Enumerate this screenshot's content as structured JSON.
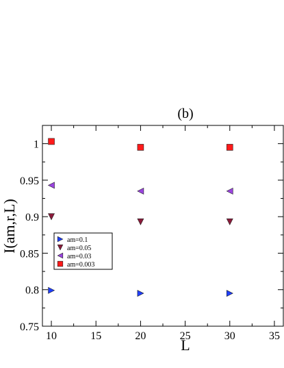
{
  "chart_data": {
    "type": "scatter",
    "title": "(b)",
    "xlabel": "L",
    "ylabel": "I(am,r,L)",
    "xlim": [
      9,
      36
    ],
    "ylim": [
      0.75,
      1.025
    ],
    "xticks": [
      10,
      15,
      20,
      25,
      30,
      35
    ],
    "yticks": [
      0.75,
      0.8,
      0.85,
      0.9,
      0.95,
      1
    ],
    "xtick_labels": [
      "10",
      "15",
      "20",
      "25",
      "30",
      "35"
    ],
    "ytick_labels": [
      "0.75",
      "0.8",
      "0.85",
      "0.9",
      "0.95",
      "1"
    ],
    "grid": false,
    "legend_position": "center-left",
    "series": [
      {
        "name": "am=0.1",
        "marker": "triangle-right",
        "color": "#1f3fff",
        "x": [
          10,
          20,
          30
        ],
        "y": [
          0.799,
          0.795,
          0.795
        ]
      },
      {
        "name": "am=0.05",
        "marker": "triangle-down",
        "color": "#8b1a3a",
        "x": [
          10,
          20,
          30
        ],
        "y": [
          0.9,
          0.893,
          0.893
        ]
      },
      {
        "name": "am=0.03",
        "marker": "triangle-left",
        "color": "#9b44e0",
        "x": [
          10,
          20,
          30
        ],
        "y": [
          0.943,
          0.935,
          0.935
        ]
      },
      {
        "name": "am=0.003",
        "marker": "square",
        "color": "#ff1a1a",
        "x": [
          10,
          20,
          30
        ],
        "y": [
          1.003,
          0.995,
          0.995
        ]
      }
    ]
  }
}
